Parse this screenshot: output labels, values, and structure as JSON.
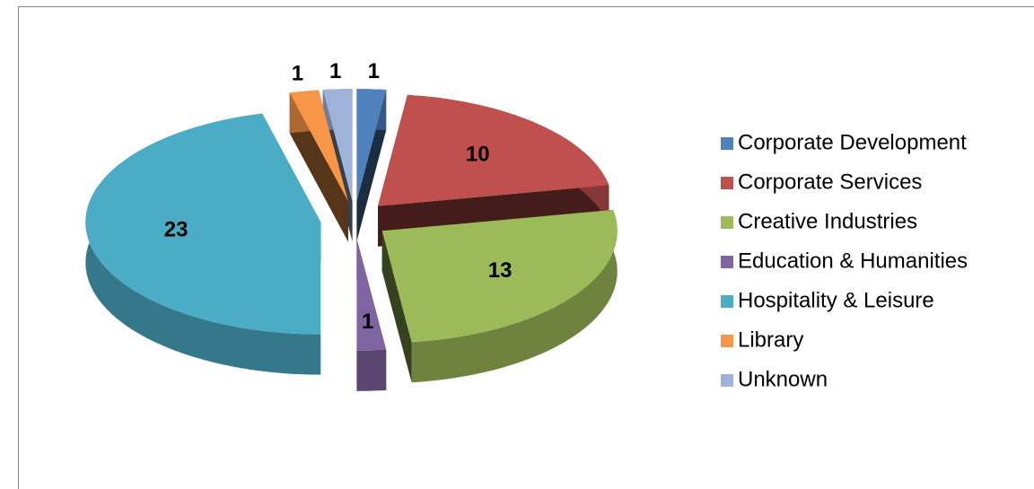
{
  "chart_data": {
    "type": "pie",
    "categories": [
      "Corporate Development",
      "Corporate Services",
      "Creative Industries",
      "Education & Humanities",
      "Hospitality & Leisure",
      "Library",
      "Unknown"
    ],
    "values": [
      1,
      10,
      13,
      1,
      23,
      1,
      1
    ],
    "colors": [
      "#4f81bd",
      "#c0504d",
      "#9bbb59",
      "#8064a2",
      "#4bacc6",
      "#f79646",
      "#9fb2da"
    ],
    "legend": "right"
  }
}
